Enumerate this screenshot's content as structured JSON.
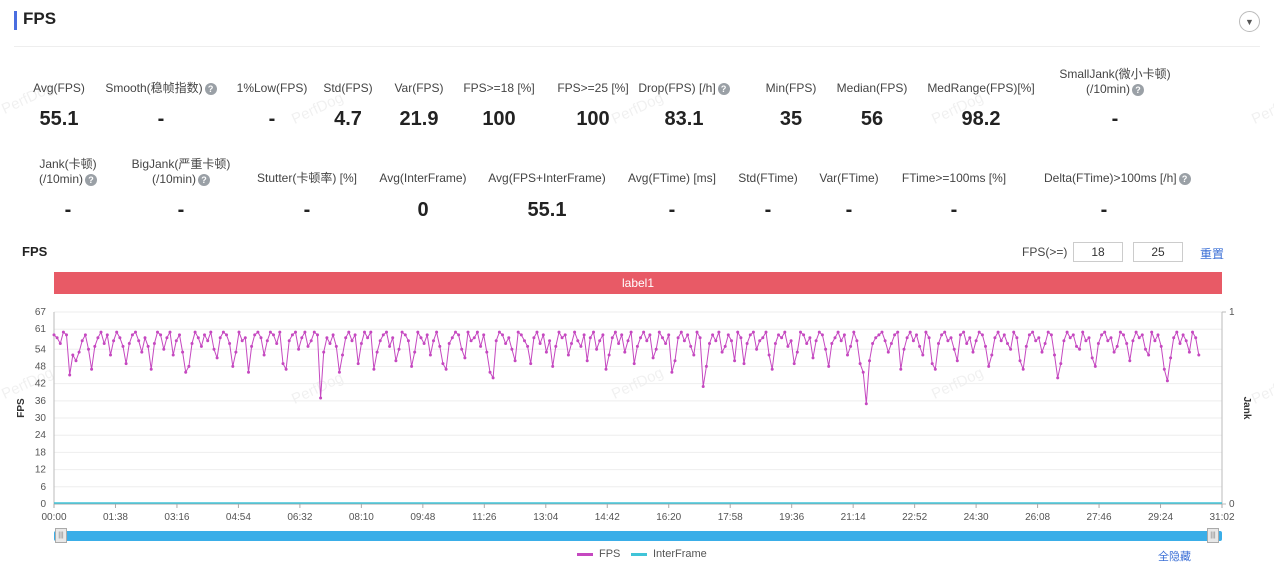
{
  "header": {
    "title": "FPS"
  },
  "watermark": "PerfDog",
  "metrics_row1": [
    {
      "label": "Avg(FPS)",
      "value": "55.1",
      "help": false
    },
    {
      "label": "Smooth(稳帧指数)",
      "value": "-",
      "help": true
    },
    {
      "label": "1%Low(FPS)",
      "value": "-",
      "help": false
    },
    {
      "label": "Std(FPS)",
      "value": "4.7",
      "help": false
    },
    {
      "label": "Var(FPS)",
      "value": "21.9",
      "help": false
    },
    {
      "label": "FPS>=18 [%]",
      "value": "100",
      "help": false
    },
    {
      "label": "FPS>=25 [%]",
      "value": "100",
      "help": false
    },
    {
      "label": "Drop(FPS) [/h]",
      "value": "83.1",
      "help": true
    },
    {
      "label": "Min(FPS)",
      "value": "35",
      "help": false
    },
    {
      "label": "Median(FPS)",
      "value": "56",
      "help": false
    },
    {
      "label": "MedRange(FPS)[%]",
      "value": "98.2",
      "help": false
    },
    {
      "label": "SmallJank(微小卡顿)",
      "label2": "(/10min)",
      "value": "-",
      "help": true
    }
  ],
  "metrics_row2": [
    {
      "label": "Jank(卡顿)",
      "label2": "(/10min)",
      "value": "-",
      "help": true
    },
    {
      "label": "BigJank(严重卡顿)",
      "label2": "(/10min)",
      "value": "-",
      "help": true
    },
    {
      "label": "Stutter(卡顿率) [%]",
      "value": "-",
      "help": false
    },
    {
      "label": "Avg(InterFrame)",
      "value": "0",
      "help": false
    },
    {
      "label": "Avg(FPS+InterFrame)",
      "value": "55.1",
      "help": false
    },
    {
      "label": "Avg(FTime) [ms]",
      "value": "-",
      "help": false
    },
    {
      "label": "Std(FTime)",
      "value": "-",
      "help": false
    },
    {
      "label": "Var(FTime)",
      "value": "-",
      "help": false
    },
    {
      "label": "FTime>=100ms [%]",
      "value": "-",
      "help": false
    },
    {
      "label": "Delta(FTime)>100ms [/h]",
      "value": "-",
      "help": true
    }
  ],
  "chart_header": {
    "title": "FPS",
    "threshold_label": "FPS(>=)",
    "threshold1": "18",
    "threshold2": "25",
    "reset_label": "重置"
  },
  "label_bar": "label1",
  "legend": {
    "fps": "FPS",
    "interframe": "InterFrame",
    "collapse_all": "全隐藏"
  },
  "colors": {
    "fps": "#c548c0",
    "interframe": "#40c4d8",
    "label_bar": "#e85a66",
    "slider": "#3aaee8",
    "accent": "#4a6ee0"
  },
  "chart_data": {
    "type": "line",
    "x_ticks": [
      "00:00",
      "01:38",
      "03:16",
      "04:54",
      "06:32",
      "08:10",
      "09:48",
      "11:26",
      "13:04",
      "14:42",
      "16:20",
      "17:58",
      "19:36",
      "21:14",
      "22:52",
      "24:30",
      "26:08",
      "27:46",
      "29:24",
      "31:02"
    ],
    "xlim_seconds": [
      0,
      1862
    ],
    "y_ticks": [
      "0",
      "6",
      "12",
      "18",
      "24",
      "30",
      "36",
      "42",
      "48",
      "54",
      "61",
      "67"
    ],
    "ylim": [
      0,
      67
    ],
    "y2_ticks": [
      "0",
      "1"
    ],
    "ylabel": "FPS",
    "y2label": "Jank",
    "series": [
      {
        "name": "FPS",
        "sample_interval_s": 5,
        "values": [
          59,
          58,
          56,
          60,
          59,
          45,
          52,
          50,
          53,
          57,
          59,
          54,
          47,
          55,
          58,
          60,
          56,
          59,
          52,
          57,
          60,
          58,
          55,
          49,
          56,
          59,
          60,
          57,
          53,
          58,
          55,
          47,
          56,
          60,
          59,
          54,
          58,
          60,
          52,
          57,
          59,
          53,
          46,
          48,
          56,
          60,
          58,
          55,
          59,
          57,
          60,
          54,
          51,
          58,
          60,
          59,
          56,
          48,
          53,
          60,
          57,
          58,
          46,
          55,
          59,
          60,
          58,
          52,
          57,
          60,
          59,
          56,
          60,
          49,
          47,
          57,
          59,
          60,
          54,
          58,
          60,
          55,
          57,
          60,
          59,
          37,
          53,
          58,
          56,
          59,
          55,
          46,
          52,
          58,
          60,
          57,
          59,
          49,
          56,
          60,
          58,
          60,
          47,
          53,
          57,
          59,
          60,
          55,
          58,
          50,
          54,
          60,
          59,
          57,
          48,
          53,
          60,
          58,
          56,
          59,
          52,
          57,
          60,
          55,
          49,
          47,
          56,
          58,
          60,
          59,
          54,
          51,
          60,
          57,
          58,
          60,
          55,
          59,
          53,
          46,
          44,
          57,
          60,
          59,
          56,
          58,
          54,
          50,
          60,
          59,
          57,
          55,
          49,
          58,
          60,
          56,
          59,
          53,
          57,
          48,
          55,
          60,
          58,
          59,
          52,
          56,
          60,
          57,
          55,
          59,
          50,
          58,
          60,
          54,
          57,
          59,
          47,
          52,
          58,
          60,
          56,
          59,
          53,
          57,
          60,
          49,
          55,
          58,
          60,
          57,
          59,
          51,
          54,
          60,
          58,
          56,
          59,
          46,
          50,
          58,
          60,
          57,
          59,
          55,
          52,
          60,
          58,
          41,
          48,
          56,
          59,
          57,
          60,
          53,
          55,
          59,
          57,
          50,
          60,
          58,
          49,
          56,
          59,
          60,
          54,
          57,
          58,
          60,
          52,
          47,
          56,
          59,
          58,
          60,
          55,
          57,
          49,
          53,
          60,
          59,
          56,
          58,
          51,
          57,
          60,
          59,
          54,
          48,
          56,
          58,
          60,
          57,
          59,
          52,
          55,
          60,
          57,
          49,
          46,
          35,
          50,
          56,
          58,
          59,
          60,
          57,
          53,
          56,
          59,
          60,
          47,
          54,
          58,
          60,
          57,
          59,
          55,
          52,
          60,
          58,
          49,
          47,
          56,
          59,
          60,
          57,
          58,
          54,
          50,
          59,
          60,
          56,
          58,
          53,
          57,
          60,
          59,
          55,
          48,
          52,
          58,
          60,
          57,
          59,
          56,
          54,
          60,
          58,
          50,
          47,
          55,
          59,
          60,
          57,
          58,
          53,
          56,
          60,
          59,
          52,
          44,
          49,
          57,
          60,
          58,
          59,
          55,
          54,
          60,
          57,
          58,
          51,
          48,
          56,
          59,
          60,
          57,
          58,
          53,
          55,
          60,
          59,
          56,
          50,
          57,
          60,
          58,
          59,
          54,
          52,
          60,
          57,
          59,
          55,
          47,
          43,
          51,
          58,
          60,
          56,
          59,
          57,
          53,
          60,
          58,
          52
        ]
      },
      {
        "name": "InterFrame",
        "values": [
          0,
          0
        ]
      }
    ]
  }
}
